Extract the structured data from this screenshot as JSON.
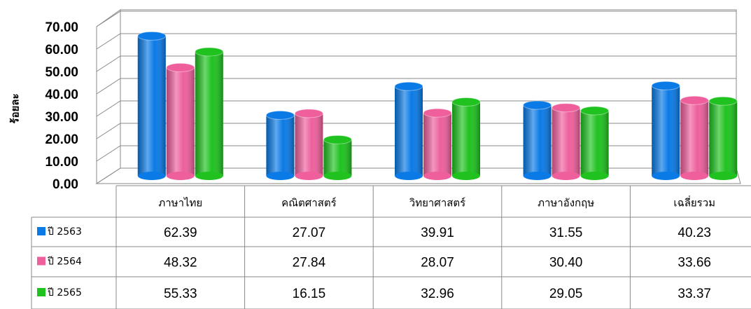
{
  "chart_data": {
    "type": "bar",
    "y_label": "ร้อยละ",
    "categories": [
      "ภาษาไทย",
      "คณิตศาสตร์",
      "วิทยาศาสตร์",
      "ภาษาอังกฤษ",
      "เฉลี่ยรวม"
    ],
    "series": [
      {
        "name": "ปี 2563",
        "color": "#0a7ae6",
        "values": [
          62.39,
          27.07,
          39.91,
          31.55,
          40.23
        ],
        "value_labels": [
          "62.39",
          "27.07",
          "39.91",
          "31.55",
          "40.23"
        ]
      },
      {
        "name": "ปี 2564",
        "color": "#ee5f9c",
        "values": [
          48.32,
          27.84,
          28.07,
          30.4,
          33.66
        ],
        "value_labels": [
          "48.32",
          "27.84",
          "28.07",
          "30.40",
          "33.66"
        ]
      },
      {
        "name": "ปี 2565",
        "color": "#1fc21f",
        "values": [
          55.33,
          16.15,
          32.96,
          29.05,
          33.37
        ],
        "value_labels": [
          "55.33",
          "16.15",
          "32.96",
          "29.05",
          "33.37"
        ]
      }
    ],
    "ylim": [
      0,
      70
    ],
    "yticks": [
      {
        "value": 0,
        "label": "0.00"
      },
      {
        "value": 10,
        "label": "10.00"
      },
      {
        "value": 20,
        "label": "20.00"
      },
      {
        "value": 30,
        "label": "30.00"
      },
      {
        "value": 40,
        "label": "40.00"
      },
      {
        "value": 50,
        "label": "50.00"
      },
      {
        "value": 60,
        "label": "60.00"
      },
      {
        "value": 70,
        "label": "70.00"
      }
    ],
    "grid": true
  }
}
